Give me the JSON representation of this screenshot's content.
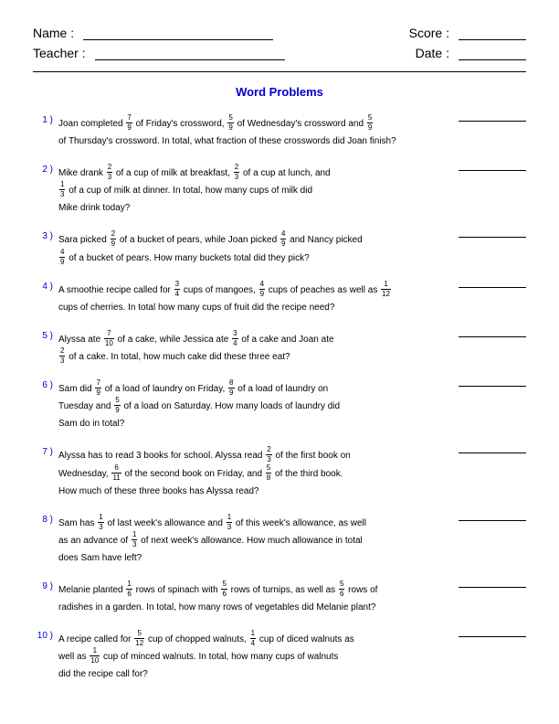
{
  "colors": {
    "title": "#0000cd",
    "problem_number": "#0000cd",
    "text": "#000000",
    "background": "#ffffff"
  },
  "typography": {
    "header_label_fontsize": 14,
    "title_fontsize": 13,
    "body_fontsize": 10,
    "fraction_fontsize": 8,
    "font_family": "Arial"
  },
  "header": {
    "name_label": "Name :",
    "teacher_label": "Teacher :",
    "score_label": "Score :",
    "date_label": "Date :"
  },
  "title": "Word Problems",
  "problems": [
    {
      "num": "1 )",
      "segments": [
        {
          "t": "text",
          "v": "Joan completed "
        },
        {
          "t": "frac",
          "n": "7",
          "d": "9"
        },
        {
          "t": "text",
          "v": " of Friday's crossword, "
        },
        {
          "t": "frac",
          "n": "5",
          "d": "9"
        },
        {
          "t": "text",
          "v": " of Wednesday's crossword and "
        },
        {
          "t": "frac",
          "n": "5",
          "d": "9"
        },
        {
          "t": "br"
        },
        {
          "t": "text",
          "v": "of Thursday's crossword. In total, what fraction of these crosswords did Joan finish?"
        }
      ]
    },
    {
      "num": "2 )",
      "segments": [
        {
          "t": "text",
          "v": "Mike drank "
        },
        {
          "t": "frac",
          "n": "2",
          "d": "3"
        },
        {
          "t": "text",
          "v": " of a cup of milk at breakfast, "
        },
        {
          "t": "frac",
          "n": "2",
          "d": "3"
        },
        {
          "t": "text",
          "v": " of a cup at lunch, and"
        },
        {
          "t": "br"
        },
        {
          "t": "frac",
          "n": "1",
          "d": "3"
        },
        {
          "t": "text",
          "v": " of a cup of milk at dinner. In total, how many cups of milk did"
        },
        {
          "t": "br"
        },
        {
          "t": "text",
          "v": "Mike drink today?"
        }
      ]
    },
    {
      "num": "3 )",
      "segments": [
        {
          "t": "text",
          "v": "Sara picked "
        },
        {
          "t": "frac",
          "n": "2",
          "d": "9"
        },
        {
          "t": "text",
          "v": " of a bucket of pears, while Joan picked "
        },
        {
          "t": "frac",
          "n": "4",
          "d": "9"
        },
        {
          "t": "text",
          "v": " and Nancy picked"
        },
        {
          "t": "br"
        },
        {
          "t": "frac",
          "n": "4",
          "d": "9"
        },
        {
          "t": "text",
          "v": " of a bucket of pears. How many buckets total did they pick?"
        }
      ]
    },
    {
      "num": "4 )",
      "segments": [
        {
          "t": "text",
          "v": "A smoothie recipe called for "
        },
        {
          "t": "frac",
          "n": "3",
          "d": "4"
        },
        {
          "t": "text",
          "v": " cups of mangoes, "
        },
        {
          "t": "frac",
          "n": "4",
          "d": "9"
        },
        {
          "t": "text",
          "v": " cups of peaches as well as "
        },
        {
          "t": "frac",
          "n": "1",
          "d": "12"
        },
        {
          "t": "br"
        },
        {
          "t": "text",
          "v": "cups of cherries. In total how many cups of fruit did the recipe need?"
        }
      ]
    },
    {
      "num": "5 )",
      "segments": [
        {
          "t": "text",
          "v": "Alyssa ate "
        },
        {
          "t": "frac",
          "n": "7",
          "d": "10"
        },
        {
          "t": "text",
          "v": " of a cake, while Jessica ate "
        },
        {
          "t": "frac",
          "n": "3",
          "d": "4"
        },
        {
          "t": "text",
          "v": " of a cake and Joan ate"
        },
        {
          "t": "br"
        },
        {
          "t": "frac",
          "n": "2",
          "d": "3"
        },
        {
          "t": "text",
          "v": " of a cake. In total, how much cake did these three eat?"
        }
      ]
    },
    {
      "num": "6 )",
      "segments": [
        {
          "t": "text",
          "v": "Sam did "
        },
        {
          "t": "frac",
          "n": "7",
          "d": "9"
        },
        {
          "t": "text",
          "v": " of a load of laundry on Friday, "
        },
        {
          "t": "frac",
          "n": "8",
          "d": "9"
        },
        {
          "t": "text",
          "v": " of a load of laundry on"
        },
        {
          "t": "br"
        },
        {
          "t": "text",
          "v": "Tuesday and "
        },
        {
          "t": "frac",
          "n": "5",
          "d": "9"
        },
        {
          "t": "text",
          "v": " of a load on Saturday. How many loads of laundry did"
        },
        {
          "t": "br"
        },
        {
          "t": "text",
          "v": "Sam do in total?"
        }
      ]
    },
    {
      "num": "7 )",
      "segments": [
        {
          "t": "text",
          "v": "Alyssa has to read 3 books for school. Alyssa read "
        },
        {
          "t": "frac",
          "n": "2",
          "d": "3"
        },
        {
          "t": "text",
          "v": " of the first book on"
        },
        {
          "t": "br"
        },
        {
          "t": "text",
          "v": "Wednesday, "
        },
        {
          "t": "frac",
          "n": "6",
          "d": "11"
        },
        {
          "t": "text",
          "v": " of the second book on Friday, and "
        },
        {
          "t": "frac",
          "n": "5",
          "d": "8"
        },
        {
          "t": "text",
          "v": " of the third book."
        },
        {
          "t": "br"
        },
        {
          "t": "text",
          "v": "How much of these three books has Alyssa read?"
        }
      ]
    },
    {
      "num": "8 )",
      "segments": [
        {
          "t": "text",
          "v": "Sam has "
        },
        {
          "t": "frac",
          "n": "1",
          "d": "3"
        },
        {
          "t": "text",
          "v": " of last week's allowance and "
        },
        {
          "t": "frac",
          "n": "1",
          "d": "3"
        },
        {
          "t": "text",
          "v": " of this week's allowance, as well"
        },
        {
          "t": "br"
        },
        {
          "t": "text",
          "v": "as an advance of "
        },
        {
          "t": "frac",
          "n": "1",
          "d": "3"
        },
        {
          "t": "text",
          "v": " of next week's allowance. How much allowance in total"
        },
        {
          "t": "br"
        },
        {
          "t": "text",
          "v": "does Sam have left?"
        }
      ]
    },
    {
      "num": "9 )",
      "segments": [
        {
          "t": "text",
          "v": "Melanie planted "
        },
        {
          "t": "frac",
          "n": "1",
          "d": "6"
        },
        {
          "t": "text",
          "v": " rows of spinach with "
        },
        {
          "t": "frac",
          "n": "5",
          "d": "6"
        },
        {
          "t": "text",
          "v": " rows of turnips, as well as "
        },
        {
          "t": "frac",
          "n": "5",
          "d": "6"
        },
        {
          "t": "text",
          "v": " rows of"
        },
        {
          "t": "br"
        },
        {
          "t": "text",
          "v": "radishes in a garden. In total, how many rows of vegetables did Melanie plant?"
        }
      ]
    },
    {
      "num": "10 )",
      "segments": [
        {
          "t": "text",
          "v": "A recipe called for "
        },
        {
          "t": "frac",
          "n": "5",
          "d": "12"
        },
        {
          "t": "text",
          "v": " cup of chopped walnuts, "
        },
        {
          "t": "frac",
          "n": "1",
          "d": "4"
        },
        {
          "t": "text",
          "v": " cup of diced walnuts as"
        },
        {
          "t": "br"
        },
        {
          "t": "text",
          "v": "well as "
        },
        {
          "t": "frac",
          "n": "1",
          "d": "10"
        },
        {
          "t": "text",
          "v": " cup of minced walnuts. In total, how many cups of walnuts"
        },
        {
          "t": "br"
        },
        {
          "t": "text",
          "v": "did the recipe call for?"
        }
      ]
    }
  ]
}
